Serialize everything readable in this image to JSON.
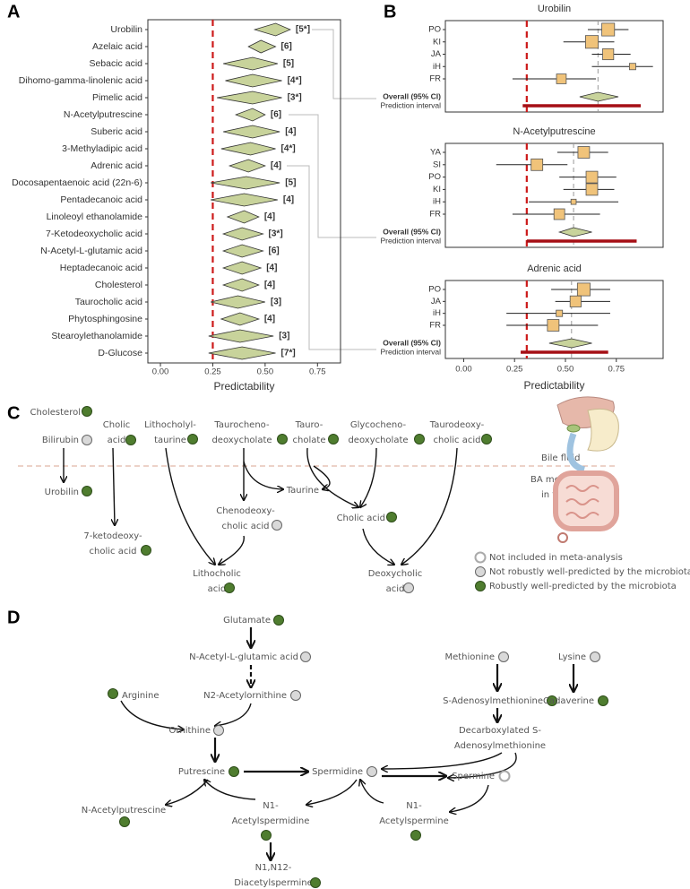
{
  "chart_data": [
    {
      "type": "forest",
      "panel_label": "A",
      "categories": [
        "Urobilin",
        "Azelaic acid",
        "Sebacic acid",
        "Dihomo-gamma-linolenic acid",
        "Pimelic acid",
        "N-Acetylputrescine",
        "Suberic acid",
        "3-Methyladipic acid",
        "Adrenic acid",
        "Docosapentaenoic acid (22n-6)",
        "Pentadecanoic acid",
        "Linoleoyl ethanolamide",
        "7-Ketodeoxycholic acid",
        "N-Acetyl-L-glutamic acid",
        "Heptadecanoic acid",
        "Cholesterol",
        "Taurocholic acid",
        "Phytosphingosine",
        "Stearoylethanolamide",
        "D-Glucose"
      ],
      "values": [
        0.55,
        0.48,
        0.44,
        0.44,
        0.44,
        0.44,
        0.44,
        0.43,
        0.42,
        0.41,
        0.4,
        0.4,
        0.39,
        0.39,
        0.39,
        0.39,
        0.37,
        0.38,
        0.38,
        0.39
      ],
      "lower": [
        0.45,
        0.42,
        0.3,
        0.31,
        0.27,
        0.36,
        0.3,
        0.29,
        0.33,
        0.24,
        0.24,
        0.32,
        0.3,
        0.3,
        0.3,
        0.3,
        0.24,
        0.29,
        0.23,
        0.23
      ],
      "upper": [
        0.62,
        0.55,
        0.56,
        0.58,
        0.58,
        0.5,
        0.57,
        0.55,
        0.5,
        0.57,
        0.56,
        0.47,
        0.49,
        0.49,
        0.48,
        0.47,
        0.5,
        0.47,
        0.54,
        0.55
      ],
      "study_counts": [
        "[5*]",
        "[6]",
        "[5]",
        "[4*]",
        "[3*]",
        "[6]",
        "[4]",
        "[4*]",
        "[4]",
        "[5]",
        "[4]",
        "[4]",
        "[3*]",
        "[6]",
        "[4]",
        "[4]",
        "[3]",
        "[4]",
        "[3]",
        "[7*]"
      ],
      "color": "#c8d39b",
      "threshold": 0.25,
      "threshold_color": "#cc1a1a",
      "xlabel": "Predictability",
      "xlim": [
        -0.06,
        0.86
      ],
      "xticks": [
        {
          "value": 0,
          "label": "0.00"
        },
        {
          "value": 0.25,
          "label": "0.25"
        },
        {
          "value": 0.5,
          "label": "0.50"
        },
        {
          "value": 0.75,
          "label": "0.75"
        }
      ]
    },
    {
      "type": "forest-meta",
      "panel_label": "B",
      "xlabel": "Predictability",
      "xlim": [
        -0.09,
        0.98
      ],
      "xticks": [
        {
          "value": 0,
          "label": "0.00"
        },
        {
          "value": 0.25,
          "label": "0.25"
        },
        {
          "value": 0.5,
          "label": "0.50"
        },
        {
          "value": 0.75,
          "label": "0.75"
        }
      ],
      "threshold": 0.31,
      "threshold_color": "#cc1a1a",
      "color": "#f0c37a",
      "overall_color": "#c8d39b",
      "pi_color": "#a50f15",
      "subplots": [
        {
          "title": "Urobilin",
          "categories": [
            "PO",
            "KI",
            "JA",
            "iH",
            "FR"
          ],
          "values": [
            0.71,
            0.63,
            0.71,
            0.83,
            0.48
          ],
          "lower": [
            0.61,
            0.49,
            0.63,
            0.63,
            0.24
          ],
          "upper": [
            0.81,
            0.74,
            0.82,
            0.93,
            0.65
          ],
          "weights": [
            24,
            24,
            18,
            6,
            14
          ],
          "overall_label": "Overall (95% CI)",
          "overall_value": 0.66,
          "overall_lower": 0.57,
          "overall_upper": 0.76,
          "pi_label": "Prediction interval",
          "pi_lower": 0.29,
          "pi_upper": 0.87
        },
        {
          "title": "N-Acetylputrescine",
          "categories": [
            "YA",
            "SI",
            "PO",
            "KI",
            "iH",
            "FR"
          ],
          "values": [
            0.59,
            0.36,
            0.63,
            0.63,
            0.54,
            0.47
          ],
          "lower": [
            0.46,
            0.16,
            0.47,
            0.49,
            0.32,
            0.24
          ],
          "upper": [
            0.71,
            0.51,
            0.75,
            0.74,
            0.76,
            0.67
          ],
          "weights": [
            20,
            20,
            20,
            20,
            4,
            17
          ],
          "overall_label": "Overall (95% CI)",
          "overall_value": 0.54,
          "overall_lower": 0.47,
          "overall_upper": 0.63,
          "pi_label": "Prediction interval",
          "pi_lower": 0.31,
          "pi_upper": 0.85
        },
        {
          "title": "Adrenic acid",
          "categories": [
            "PO",
            "JA",
            "iH",
            "FR"
          ],
          "values": [
            0.59,
            0.55,
            0.47,
            0.44
          ],
          "lower": [
            0.43,
            0.45,
            0.21,
            0.21
          ],
          "upper": [
            0.72,
            0.72,
            0.72,
            0.66
          ],
          "weights": [
            24,
            18,
            6,
            20
          ],
          "overall_label": "Overall (95% CI)",
          "overall_value": 0.53,
          "overall_lower": 0.42,
          "overall_upper": 0.63,
          "pi_label": "Prediction interval",
          "pi_lower": 0.28,
          "pi_upper": 0.71
        }
      ]
    }
  ],
  "diagram_c": {
    "panel_label": "C",
    "bile_label": "Bile fluid",
    "colon_label": [
      "BA metabolism",
      "in the colon"
    ],
    "nodes": [
      {
        "label": [
          "Cholesterol"
        ],
        "fill": "#4f7d2f"
      },
      {
        "label": [
          "Bilirubin"
        ],
        "fill": "#d9d9d9"
      },
      {
        "label": [
          "Cholic",
          "acid"
        ],
        "fill": "#4f7d2f"
      },
      {
        "label": [
          "Lithocholyl-",
          "taurine"
        ],
        "fill": "#4f7d2f"
      },
      {
        "label": [
          "Taurocheno-",
          "deoxycholate"
        ],
        "fill": "#4f7d2f"
      },
      {
        "label": [
          "Tauro-",
          "cholate"
        ],
        "fill": "#4f7d2f"
      },
      {
        "label": [
          "Glycocheno-",
          "deoxycholate"
        ],
        "fill": "#4f7d2f"
      },
      {
        "label": [
          "Taurodeoxy-",
          "cholic acid"
        ],
        "fill": "#4f7d2f"
      },
      {
        "label": [
          "Urobilin"
        ],
        "fill": "#4f7d2f"
      },
      {
        "label": [
          "Taurine"
        ]
      },
      {
        "label": [
          "Chenodeoxy-",
          "cholic acid"
        ],
        "fill": "#d9d9d9"
      },
      {
        "label": [
          "Cholic acid"
        ],
        "fill": "#4f7d2f"
      },
      {
        "label": [
          "7-ketodeoxy-",
          "cholic acid"
        ],
        "fill": "#4f7d2f"
      },
      {
        "label": [
          "Lithocholic",
          "acid"
        ],
        "fill": "#4f7d2f"
      },
      {
        "label": [
          "Deoxycholic",
          "acid"
        ],
        "fill": "#d9d9d9"
      }
    ],
    "legend": [
      {
        "label": "Not included in meta-analysis",
        "fill": "#ffffff",
        "stroke": "#aaaaaa"
      },
      {
        "label": "Not robustly well-predicted by the microbiota",
        "fill": "#d9d9d9",
        "stroke": "#666666"
      },
      {
        "label": "Robustly well-predicted by the microbiota",
        "fill": "#4f7d2f",
        "stroke": "#2e4d1a"
      }
    ]
  },
  "diagram_d": {
    "panel_label": "D",
    "nodes": [
      {
        "label": [
          "Glutamate"
        ],
        "fill": "#4f7d2f"
      },
      {
        "label": [
          "N-Acetyl-L-glutamic acid"
        ],
        "fill": "#d9d9d9"
      },
      {
        "label": [
          "N2-Acetylornithine"
        ],
        "fill": "#d9d9d9"
      },
      {
        "label": [
          "Arginine"
        ],
        "fill": "#4f7d2f"
      },
      {
        "label": [
          "Ornithine"
        ],
        "fill": "#d9d9d9"
      },
      {
        "label": [
          "Putrescine"
        ],
        "fill": "#4f7d2f"
      },
      {
        "label": [
          "Spermidine"
        ],
        "fill": "#d9d9d9"
      },
      {
        "label": [
          "Spermine"
        ],
        "fill": "#ffffff"
      },
      {
        "label": [
          "Methionine"
        ],
        "fill": "#d9d9d9"
      },
      {
        "label": [
          "Lysine"
        ],
        "fill": "#d9d9d9"
      },
      {
        "label": [
          "S-Adenosylmethionine"
        ],
        "fill": "#4f7d2f"
      },
      {
        "label": [
          "Cadaverine"
        ],
        "fill": "#4f7d2f"
      },
      {
        "label": [
          "Decarboxylated S-",
          "Adenosylmethionine"
        ]
      },
      {
        "label": [
          "N-Acetylputrescine"
        ],
        "fill": "#4f7d2f"
      },
      {
        "label": [
          "N1-",
          "Acetylspermidine"
        ],
        "fill": "#4f7d2f"
      },
      {
        "label": [
          "N1,N12-",
          "Diacetylspermine"
        ],
        "fill": "#4f7d2f"
      },
      {
        "label": [
          "N1-",
          "Acetylspermine"
        ],
        "fill": "#4f7d2f"
      }
    ]
  }
}
